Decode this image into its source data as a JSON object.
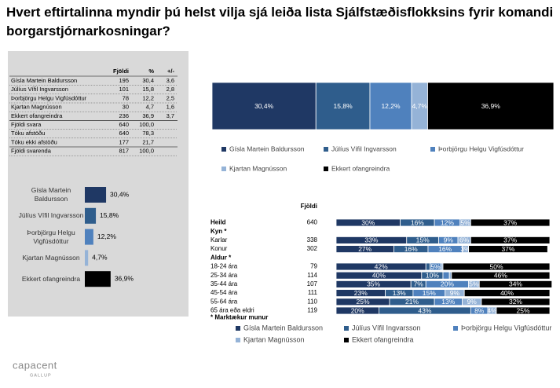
{
  "title": "Hvert eftirtalinna myndir þú helst vilja sjá leiða lista Sjálfstæðisflokksins fyrir komandi borgarstjórnarkosningar?",
  "table": {
    "header": [
      "Fjöldi",
      "%",
      "+/-"
    ],
    "rows": [
      [
        "Gísla Martein Baldursson",
        "195",
        "30,4",
        "3,6"
      ],
      [
        "Júlíus Vífil Ingvarsson",
        "101",
        "15,8",
        "2,8"
      ],
      [
        "Þorbjörgu Helgu Vigfúsdóttur",
        "78",
        "12,2",
        "2,5"
      ],
      [
        "Kjartan Magnússon",
        "30",
        "4,7",
        "1,6"
      ],
      [
        "Ekkert ofangreindra",
        "236",
        "36,9",
        "3,7"
      ],
      [
        "Fjöldi svara",
        "640",
        "100,0"
      ],
      [
        "Tóku afstöðu",
        "640",
        "78,3"
      ],
      [
        "Tóku ekki afstöðu",
        "177",
        "21,7"
      ],
      [
        "Fjöldi svarenda",
        "817",
        "100,0"
      ]
    ]
  },
  "chart_data": [
    {
      "type": "stacked_bar",
      "xlim": [
        0,
        100
      ],
      "legend": "bottom",
      "series": [
        {
          "name": "Gísla Martein Baldursson",
          "color": "#1f3864",
          "values": [
            30.4
          ],
          "value_labels": [
            "30,4%"
          ]
        },
        {
          "name": "Júlíus Vífil Ingvarsson",
          "color": "#2f5d8c",
          "values": [
            15.8
          ],
          "value_labels": [
            "15,8%"
          ]
        },
        {
          "name": "Þorbjörgu Helgu Vigfúsdóttur",
          "color": "#4f81bd",
          "values": [
            12.2
          ],
          "value_labels": [
            "12,2%"
          ]
        },
        {
          "name": "Kjartan Magnússon",
          "color": "#95b3d7",
          "values": [
            4.7
          ],
          "value_labels": [
            "4,7%"
          ]
        },
        {
          "name": "Ekkert ofangreindra",
          "color": "#000000",
          "values": [
            36.9
          ],
          "value_labels": [
            "36,9%"
          ]
        }
      ]
    },
    {
      "type": "bar",
      "xlim": [
        0,
        100
      ],
      "categories": [
        "Gísla Martein Baldursson",
        "Júlíus Vífil Ingvarsson",
        "Þorbjörgu Helgu Vigfúsdóttur",
        "Kjartan Magnússon",
        "Ekkert ofangreindra"
      ],
      "values": [
        30.4,
        15.8,
        12.2,
        4.7,
        36.9
      ],
      "value_labels": [
        "30,4%",
        "15,8%",
        "12,2%",
        "4,7%",
        "36,9%"
      ],
      "colors": [
        "#1f3864",
        "#2f5d8c",
        "#4f81bd",
        "#95b3d7",
        "#000000"
      ]
    },
    {
      "type": "stacked_bar",
      "xlim": [
        0,
        100
      ],
      "legend": "bottom",
      "n_label": "Fjöldi",
      "footnote": "* Marktækur munur",
      "categories": [
        "Heild",
        "Kyn *",
        "Karlar",
        "Konur",
        "Aldur *",
        "18-24 ára",
        "25-34 ára",
        "35-44 ára",
        "45-54 ára",
        "55-64 ára",
        "65 ára eða eldri"
      ],
      "n": [
        640,
        null,
        338,
        302,
        null,
        79,
        114,
        107,
        111,
        110,
        119
      ],
      "series": [
        {
          "name": "Gísla Martein Baldursson",
          "color": "#1f3864",
          "values": [
            30,
            null,
            33,
            27,
            null,
            42,
            40,
            35,
            23,
            25,
            20
          ],
          "value_labels": [
            "30%",
            null,
            "33%",
            "27%",
            null,
            "42%",
            "40%",
            "35%",
            "23%",
            "25%",
            "20%"
          ]
        },
        {
          "name": "Júlíus Vífil Ingvarsson",
          "color": "#2f5d8c",
          "values": [
            16,
            null,
            15,
            16,
            null,
            2,
            10,
            7,
            13,
            21,
            43
          ],
          "value_labels": [
            "16%",
            null,
            "15%",
            "16%",
            null,
            null,
            "10%",
            "7%",
            "13%",
            "21%",
            "43%"
          ]
        },
        {
          "name": "Þorbjörgu Helgu Vigfúsdóttur",
          "color": "#4f81bd",
          "values": [
            12,
            null,
            9,
            16,
            null,
            5,
            3,
            20,
            15,
            13,
            8
          ],
          "value_labels": [
            "12%",
            null,
            "9%",
            "16%",
            null,
            "5%",
            null,
            "20%",
            "15%",
            "13%",
            "8%"
          ]
        },
        {
          "name": "Kjartan Magnússon",
          "color": "#95b3d7",
          "values": [
            5,
            null,
            6,
            3,
            null,
            1,
            1,
            5,
            9,
            9,
            4
          ],
          "value_labels": [
            "5%",
            null,
            "6%",
            "3%",
            null,
            null,
            null,
            "5%",
            "9%",
            "9%",
            "4%"
          ]
        },
        {
          "name": "Ekkert ofangreindra",
          "color": "#000000",
          "values": [
            37,
            null,
            37,
            37,
            null,
            50,
            46,
            34,
            40,
            32,
            25
          ],
          "value_labels": [
            "37%",
            null,
            "37%",
            "37%",
            null,
            "50%",
            "46%",
            "34%",
            "40%",
            "32%",
            "25%"
          ]
        }
      ]
    }
  ],
  "logo": {
    "name": "capacent",
    "sub": "GALLUP"
  }
}
